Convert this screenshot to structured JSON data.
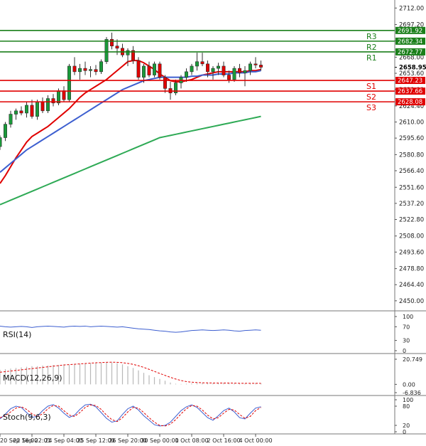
{
  "chart_data": {
    "type": "candlestick",
    "title": "",
    "price_axis": {
      "range": [
        2441,
        2716
      ],
      "ticks": [
        2712.0,
        2697.2,
        2682.6,
        2668.0,
        2653.6,
        2639.0,
        2624.4,
        2610.0,
        2595.6,
        2580.8,
        2566.4,
        2551.6,
        2537.2,
        2522.8,
        2508.0,
        2493.6,
        2478.8,
        2464.4,
        2450.0
      ],
      "tick_labels": [
        "2712.00",
        "2697.20",
        "2682.60",
        "2668.00",
        "2653.60",
        "2639.00",
        "2624.40",
        "2610.00",
        "2595.60",
        "2580.80",
        "2566.40",
        "2551.60",
        "2537.20",
        "2522.80",
        "2508.00",
        "2493.60",
        "2478.80",
        "2464.40",
        "2450.00"
      ]
    },
    "time_axis": {
      "labels": [
        "20 Sep 16:00",
        "22 Sep 22:01",
        "24 Sep 04:00",
        "25 Sep 12:00",
        "26 Sep 20:00",
        "30 Sep 00:00",
        "1 Oct 08:00",
        "2 Oct 16:00",
        "4 Oct 00:00"
      ],
      "label_index": [
        0,
        6,
        12,
        18,
        24,
        30,
        36,
        42,
        48
      ]
    },
    "current_price": {
      "value": 2658.95,
      "label": "2658.95"
    },
    "levels": [
      {
        "name": "R3",
        "value": 2691.92,
        "label": "2691.92",
        "color": "#1a7f1a"
      },
      {
        "name": "R2",
        "value": 2682.34,
        "label": "2682.34",
        "color": "#1a7f1a"
      },
      {
        "name": "R1",
        "value": 2672.77,
        "label": "2672.77",
        "color": "#1a7f1a"
      },
      {
        "name": "S1",
        "value": 2647.23,
        "label": "2647.23",
        "color": "#e00000"
      },
      {
        "name": "S2",
        "value": 2637.66,
        "label": "2637.66",
        "color": "#e00000"
      },
      {
        "name": "S3",
        "value": 2628.08,
        "label": "2628.08",
        "color": "#e00000"
      }
    ],
    "candles": [
      [
        2588,
        2598,
        2585,
        2596
      ],
      [
        2596,
        2610,
        2593,
        2608
      ],
      [
        2608,
        2620,
        2605,
        2617
      ],
      [
        2617,
        2622,
        2612,
        2620
      ],
      [
        2620,
        2624,
        2616,
        2618
      ],
      [
        2618,
        2628,
        2614,
        2625
      ],
      [
        2625,
        2630,
        2613,
        2615
      ],
      [
        2615,
        2630,
        2612,
        2628
      ],
      [
        2628,
        2632,
        2618,
        2620
      ],
      [
        2620,
        2634,
        2618,
        2631
      ],
      [
        2631,
        2635,
        2624,
        2627
      ],
      [
        2627,
        2640,
        2625,
        2638
      ],
      [
        2638,
        2642,
        2628,
        2630
      ],
      [
        2630,
        2662,
        2628,
        2660
      ],
      [
        2660,
        2668,
        2652,
        2655
      ],
      [
        2655,
        2662,
        2648,
        2658
      ],
      [
        2658,
        2664,
        2652,
        2656
      ],
      [
        2656,
        2660,
        2650,
        2657
      ],
      [
        2657,
        2661,
        2652,
        2655
      ],
      [
        2655,
        2666,
        2653,
        2664
      ],
      [
        2664,
        2686,
        2662,
        2684
      ],
      [
        2684,
        2690,
        2675,
        2678
      ],
      [
        2678,
        2684,
        2670,
        2676
      ],
      [
        2676,
        2680,
        2668,
        2670
      ],
      [
        2670,
        2676,
        2660,
        2674
      ],
      [
        2674,
        2678,
        2662,
        2665
      ],
      [
        2665,
        2668,
        2648,
        2650
      ],
      [
        2650,
        2662,
        2645,
        2660
      ],
      [
        2660,
        2664,
        2650,
        2652
      ],
      [
        2652,
        2664,
        2650,
        2662
      ],
      [
        2662,
        2664,
        2648,
        2650
      ],
      [
        2650,
        2652,
        2636,
        2640
      ],
      [
        2640,
        2646,
        2630,
        2636
      ],
      [
        2636,
        2648,
        2634,
        2645
      ],
      [
        2645,
        2652,
        2640,
        2650
      ],
      [
        2650,
        2658,
        2646,
        2655
      ],
      [
        2655,
        2662,
        2652,
        2660
      ],
      [
        2660,
        2672,
        2656,
        2664
      ],
      [
        2664,
        2672,
        2660,
        2662
      ],
      [
        2662,
        2665,
        2650,
        2655
      ],
      [
        2655,
        2660,
        2648,
        2658
      ],
      [
        2658,
        2663,
        2652,
        2660
      ],
      [
        2660,
        2664,
        2650,
        2652
      ],
      [
        2652,
        2656,
        2645,
        2648
      ],
      [
        2648,
        2660,
        2646,
        2658
      ],
      [
        2658,
        2662,
        2650,
        2654
      ],
      [
        2654,
        2660,
        2642,
        2656
      ],
      [
        2656,
        2664,
        2652,
        2662
      ],
      [
        2662,
        2668,
        2658,
        2661
      ],
      [
        2661,
        2665,
        2656,
        2659
      ]
    ],
    "moving_averages": [
      {
        "color": "#e00000",
        "values": [
          2555,
          2562,
          2570,
          2578,
          2585,
          2592,
          2597,
          2600,
          2603,
          2606,
          2610,
          2614,
          2618,
          2622,
          2627,
          2632,
          2636,
          2639,
          2642,
          2645,
          2648,
          2652,
          2656,
          2660,
          2664,
          2665,
          2665,
          2663,
          2660,
          2657,
          2653,
          2650,
          2647,
          2646,
          2646,
          2647,
          2648,
          2650,
          2652,
          2653,
          2654,
          2655,
          2655,
          2655,
          2655,
          2655,
          2655,
          2656,
          2656,
          2657
        ]
      },
      {
        "color": "#3d5fd0",
        "values": [
          2565,
          2569,
          2573,
          2577,
          2581,
          2585,
          2588,
          2591,
          2594,
          2597,
          2600,
          2603,
          2606,
          2609,
          2612,
          2615,
          2618,
          2621,
          2624,
          2627,
          2630,
          2633,
          2636,
          2639,
          2641,
          2643,
          2645,
          2647,
          2648,
          2649,
          2650,
          2650,
          2650,
          2650,
          2650,
          2650,
          2651,
          2651,
          2652,
          2652,
          2652,
          2653,
          2653,
          2653,
          2654,
          2654,
          2654,
          2655,
          2655,
          2656
        ]
      },
      {
        "color": "#2eaa55",
        "values": [
          2536,
          2538,
          2540,
          2542,
          2544,
          2546,
          2548,
          2550,
          2552,
          2554,
          2556,
          2558,
          2560,
          2562,
          2564,
          2566,
          2568,
          2570,
          2572,
          2574,
          2576,
          2578,
          2580,
          2582,
          2584,
          2586,
          2588,
          2590,
          2592,
          2594,
          2596,
          2597,
          2598,
          2599,
          2600,
          2601,
          2602,
          2603,
          2604,
          2605,
          2606,
          2607,
          2608,
          2609,
          2610,
          2611,
          2612,
          2613,
          2614,
          2615
        ]
      }
    ],
    "indicators": [
      {
        "name": "RSI(14)",
        "range": [
          0,
          100
        ],
        "tick_labels": [
          "100",
          "70",
          "30",
          "0"
        ],
        "ticks": [
          100,
          70,
          30,
          0
        ],
        "line_color": "#3d5fd0",
        "values": [
          72,
          70,
          69,
          70,
          71,
          70,
          68,
          70,
          71,
          72,
          71,
          70,
          69,
          71,
          72,
          71,
          72,
          70,
          71,
          72,
          71,
          70,
          69,
          70,
          68,
          66,
          64,
          63,
          62,
          60,
          58,
          57,
          55,
          54,
          55,
          57,
          59,
          60,
          61,
          60,
          59,
          60,
          61,
          60,
          58,
          57,
          59,
          60,
          61,
          60
        ]
      },
      {
        "name": "MACD(12,26,9)",
        "range": [
          -6.836,
          20.749
        ],
        "tick_labels": [
          "20.749",
          "0.00",
          "-6.836"
        ],
        "ticks": [
          20.749,
          0,
          -6.836
        ],
        "histogram": [
          12,
          12.5,
          13,
          13.5,
          14,
          14.5,
          15,
          15,
          15.5,
          15.5,
          16,
          16,
          16.5,
          16,
          17,
          17,
          17.5,
          17.5,
          18,
          18,
          18.5,
          18,
          17.5,
          16.5,
          15,
          13.5,
          11.5,
          9.5,
          7.5,
          6,
          4.5,
          3,
          1.5,
          0.5,
          0.3,
          0.5,
          0.8,
          1,
          1.2,
          1.1,
          1,
          1.1,
          1.2,
          1,
          0.8,
          0.6,
          0.7,
          0.9,
          1,
          0.8
        ],
        "signal": [
          10,
          10.5,
          11,
          11.5,
          12,
          12.5,
          13,
          13.5,
          14,
          14.5,
          15,
          15.5,
          16,
          16.3,
          16.6,
          16.9,
          17.2,
          17.5,
          17.8,
          18,
          18.2,
          18.3,
          18.2,
          17.9,
          17.3,
          16.5,
          15.4,
          14,
          12.4,
          10.7,
          9,
          7.4,
          5.8,
          4.4,
          3.2,
          2.3,
          1.8,
          1.5,
          1.3,
          1.2,
          1.1,
          1.1,
          1.1,
          1.1,
          1,
          0.9,
          0.9,
          0.9,
          0.9,
          0.9
        ],
        "histogram_color": "#b8b8b8",
        "signal_color": "#e00000"
      },
      {
        "name": "Stoch(9,6,3)",
        "range": [
          0,
          100
        ],
        "tick_labels": [
          "100",
          "80",
          "20",
          "0"
        ],
        "ticks": [
          100,
          80,
          20,
          0
        ],
        "k_values": [
          40,
          55,
          72,
          80,
          76,
          60,
          45,
          48,
          66,
          80,
          85,
          74,
          58,
          45,
          52,
          70,
          84,
          86,
          78,
          60,
          42,
          30,
          34,
          54,
          72,
          80,
          68,
          50,
          36,
          22,
          18,
          20,
          30,
          48,
          66,
          78,
          84,
          76,
          60,
          44,
          36,
          50,
          66,
          74,
          62,
          44,
          40,
          58,
          74,
          78
        ],
        "d_values": [
          44,
          50,
          62,
          74,
          78,
          70,
          56,
          48,
          56,
          72,
          82,
          80,
          66,
          52,
          48,
          60,
          76,
          84,
          82,
          70,
          52,
          38,
          32,
          44,
          62,
          76,
          74,
          60,
          44,
          30,
          20,
          18,
          24,
          38,
          56,
          72,
          82,
          80,
          68,
          52,
          40,
          44,
          58,
          70,
          68,
          54,
          42,
          48,
          66,
          76
        ],
        "k_color": "#3d5fd0",
        "d_color": "#e00000"
      }
    ],
    "colors": {
      "bull_candle": "#1a9a3a",
      "bear_candle": "#e00000",
      "axis_text": "#222222",
      "grid_border": "#555555"
    }
  }
}
